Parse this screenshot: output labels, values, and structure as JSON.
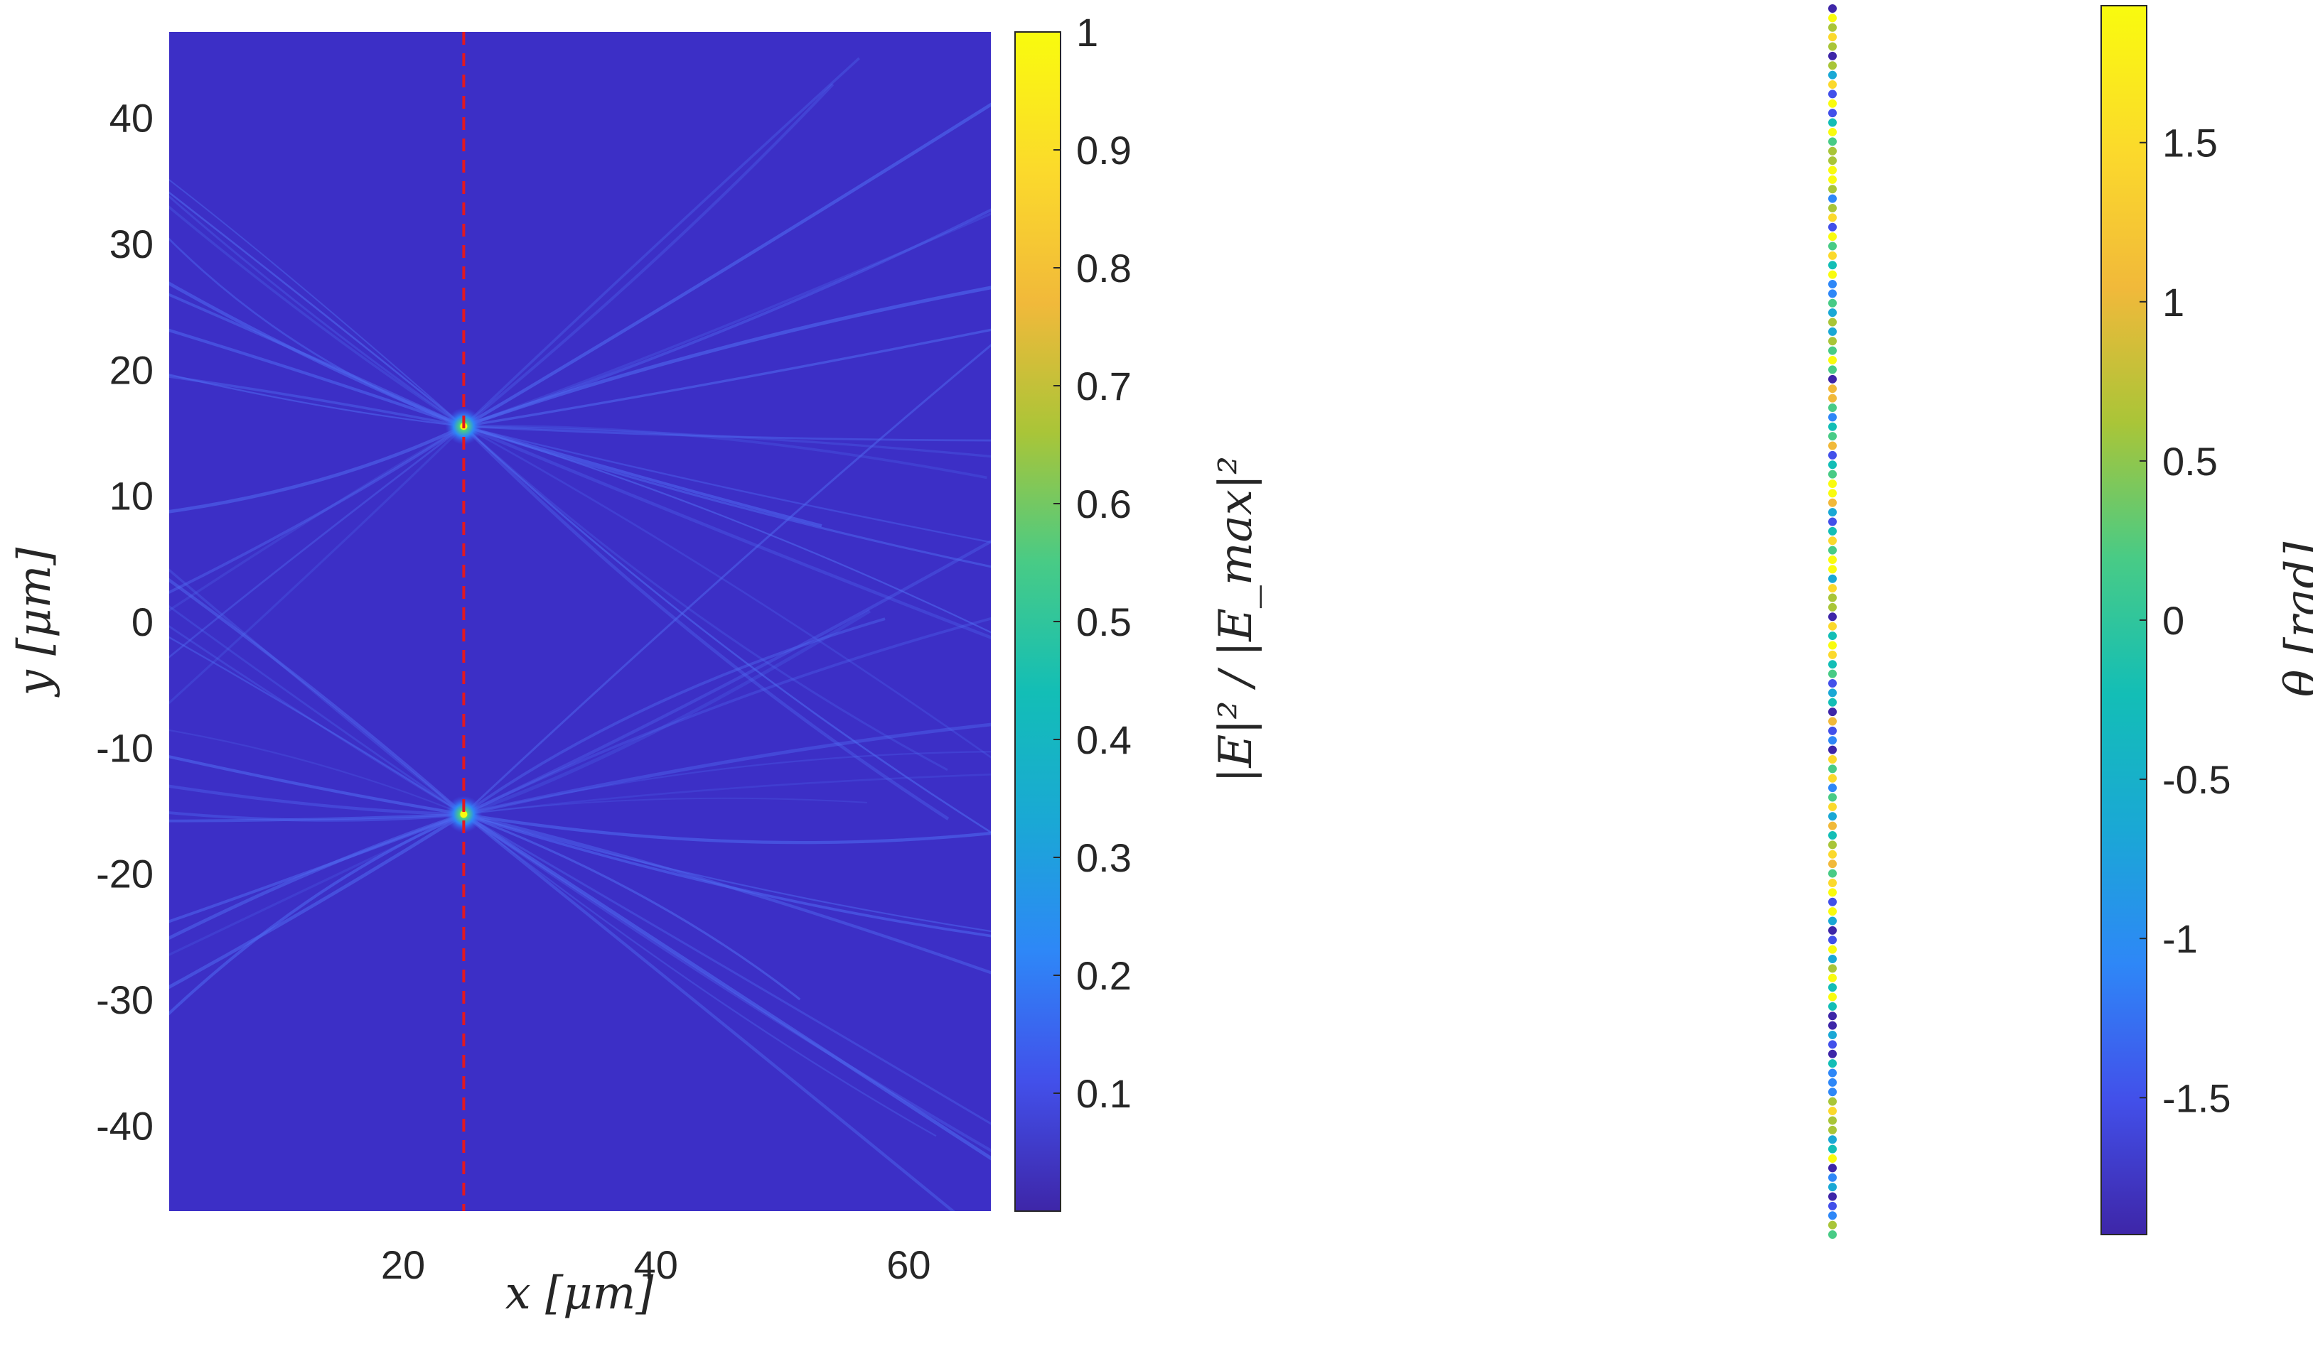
{
  "chart_data": [
    {
      "type": "heatmap",
      "xlabel": "x [μm]",
      "ylabel": "y [μm]",
      "xlim": [
        1.5,
        66.5
      ],
      "ylim": [
        -46.8,
        46.8
      ],
      "x_ticks": [
        20,
        40,
        60
      ],
      "y_ticks": [
        40,
        30,
        20,
        10,
        0,
        -10,
        -20,
        -30,
        -40
      ],
      "focal_line_x": 24.8,
      "focal_spots": [
        {
          "x": 24.8,
          "y": 15.5,
          "value": 1.0
        },
        {
          "x": 24.8,
          "y": -15.3,
          "value": 0.95
        }
      ],
      "background_value": 0.05,
      "colorbar": {
        "label": "|E|² / |E_max|²",
        "range": [
          0.0,
          1.0
        ],
        "ticks": [
          1,
          0.9,
          0.8,
          0.7,
          0.6,
          0.5,
          0.4,
          0.3,
          0.2,
          0.1
        ]
      },
      "colormap": [
        "#3e26a8",
        "#4250ea",
        "#2e87f7",
        "#1aa8d5",
        "#13beb6",
        "#48cb86",
        "#a9c538",
        "#f1b93a",
        "#fbd92c",
        "#f9fb0e"
      ],
      "focal_line_color": "#e3181f"
    },
    {
      "type": "scatter",
      "ylabel": "θ [rad]",
      "points_count": 130,
      "colorbar": {
        "label": "θ [rad]",
        "range": [
          -1.93,
          1.93
        ],
        "ticks": [
          1.5,
          1,
          0.5,
          0,
          -0.5,
          -1,
          -1.5
        ]
      }
    }
  ]
}
